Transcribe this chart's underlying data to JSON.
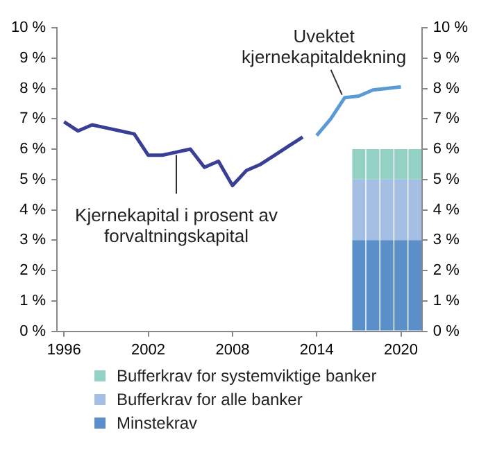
{
  "chart_data": {
    "type": "line",
    "xlim": [
      1995.5,
      2021.5
    ],
    "xticks": [
      1996,
      2002,
      2008,
      2014,
      2020
    ],
    "ylim": [
      0,
      10
    ],
    "yticks": [
      {
        "value": 0,
        "label": "0 %"
      },
      {
        "value": 1,
        "label": "1 %"
      },
      {
        "value": 2,
        "label": "2 %"
      },
      {
        "value": 3,
        "label": "3 %"
      },
      {
        "value": 4,
        "label": "4 %"
      },
      {
        "value": 5,
        "label": "5 %"
      },
      {
        "value": 6,
        "label": "6 %"
      },
      {
        "value": 7,
        "label": "7 %"
      },
      {
        "value": 8,
        "label": "8 %"
      },
      {
        "value": 9,
        "label": "9 %"
      },
      {
        "value": 10,
        "label": "10 %"
      }
    ],
    "y2lim": [
      0,
      10
    ],
    "y2ticks": [
      {
        "value": 0,
        "label": "0 %"
      },
      {
        "value": 1,
        "label": "1 %"
      },
      {
        "value": 2,
        "label": "2 %"
      },
      {
        "value": 3,
        "label": "3 %"
      },
      {
        "value": 4,
        "label": "4 %"
      },
      {
        "value": 5,
        "label": "5 %"
      },
      {
        "value": 6,
        "label": "6 %"
      },
      {
        "value": 7,
        "label": "7 %"
      },
      {
        "value": 8,
        "label": "8 %"
      },
      {
        "value": 9,
        "label": "9 %"
      },
      {
        "value": 10,
        "label": "10 %"
      }
    ],
    "grid": false,
    "legend": "bottom",
    "marker": "none",
    "line_style": "solid",
    "stacked": true,
    "series": [
      {
        "color": "#3a3f96",
        "x": [
          1996,
          1997,
          1998,
          1999,
          2000,
          2001,
          2002,
          2003,
          2004,
          2005,
          2006,
          2007,
          2008,
          2009,
          2010,
          2011,
          2012,
          2013
        ],
        "values": [
          6.9,
          6.6,
          6.8,
          6.7,
          6.6,
          6.5,
          5.8,
          5.8,
          5.9,
          6.0,
          5.4,
          5.6,
          4.8,
          5.3,
          5.5,
          5.8,
          6.1,
          6.4
        ]
      },
      {
        "color": "#5b9bd5",
        "x": [
          2014,
          2015,
          2016,
          2017,
          2018,
          2019,
          2020
        ],
        "values": [
          6.45,
          7.0,
          7.7,
          7.75,
          7.95,
          8.0,
          8.05
        ]
      },
      {
        "type": "bar",
        "name": "Minstekrav",
        "color": "#5b8fc9",
        "x": [
          2017,
          2018,
          2019,
          2020,
          2021
        ],
        "values": [
          3,
          3,
          3,
          3,
          3
        ]
      },
      {
        "type": "bar",
        "name": "Bufferkrav for alle banker",
        "color": "#a4bfe3",
        "x": [
          2017,
          2018,
          2019,
          2020,
          2021
        ],
        "values": [
          2,
          2,
          2,
          2,
          2
        ]
      },
      {
        "type": "bar",
        "name": "Bufferkrav for systemviktige banker",
        "color": "#93d1c4",
        "x": [
          2017,
          2018,
          2019,
          2020,
          2021
        ],
        "values": [
          1,
          1,
          1,
          1,
          1
        ]
      }
    ],
    "annotations": [
      {
        "text": "Kjernekapital i prosent av forvaltningskapital",
        "x": 2004,
        "y": 5.9
      },
      {
        "text": "Uvektet kjernekapitaldekning",
        "x": 2016,
        "y": 7.7
      }
    ]
  }
}
